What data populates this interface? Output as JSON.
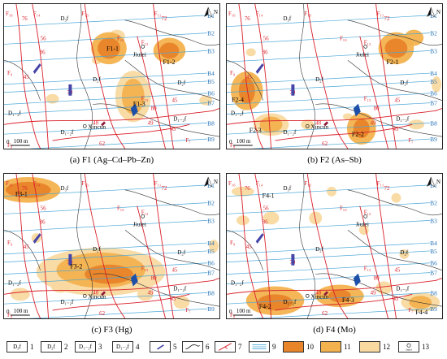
{
  "panels": [
    {
      "id": "a",
      "caption": "(a) F1 (Ag–Cd–Pb–Zn)",
      "labels": [
        "F1-1",
        "F1-2",
        "F1-3"
      ]
    },
    {
      "id": "b",
      "caption": "(b) F2 (As–Sb)",
      "labels": [
        "F2-1",
        "F2-4",
        "F2-3",
        "F2-2"
      ]
    },
    {
      "id": "c",
      "caption": "(c) F3 (Hg)",
      "labels": [
        "F3-1",
        "F3-2"
      ]
    },
    {
      "id": "d",
      "caption": "(d) F4 (Mo)",
      "labels": [
        "F4-1",
        "F4-2",
        "F4-3",
        "F4-4"
      ]
    }
  ],
  "map": {
    "lines": [
      "B1",
      "B2",
      "B3",
      "B4",
      "B5",
      "B6",
      "B7",
      "B8",
      "B9"
    ],
    "places": {
      "jiulei": "Jiulei",
      "xincun": "Xincun"
    },
    "north": "N",
    "scale": "100 m",
    "scale_zero": "0",
    "strata": {
      "d3": "D₃f",
      "d2": "D₂f",
      "d12": "D₁₋₂f",
      "d12b": "D₁₋₂f"
    },
    "faults": [
      "F₁₆",
      "F₁₄",
      "F₁₃",
      "F₁₂",
      "F₁₁",
      "F₁₀",
      "F₁₅",
      "F₉",
      "F₈",
      "F₇"
    ],
    "dips": [
      "76",
      "72",
      "86",
      "45",
      "70",
      "80",
      "49",
      "48",
      "43",
      "62",
      "56",
      "45"
    ]
  },
  "legend": [
    {
      "n": "1",
      "text": "D₃f"
    },
    {
      "n": "2",
      "text": "D₂f"
    },
    {
      "n": "3",
      "text": "D₁₋₂f"
    },
    {
      "n": "4",
      "text": "D₁₋₂f"
    },
    {
      "n": "5",
      "symbol": "dike"
    },
    {
      "n": "6",
      "symbol": "boundary"
    },
    {
      "n": "7",
      "symbol": "fault",
      "text": "F₁₅ 86"
    },
    {
      "n": "9",
      "symbol": "survey-line"
    },
    {
      "n": "10",
      "symbol": "fill",
      "color": "#e8842a"
    },
    {
      "n": "11",
      "symbol": "fill",
      "color": "#f3b24e"
    },
    {
      "n": "12",
      "symbol": "fill",
      "color": "#f9d9a0"
    },
    {
      "n": "13",
      "symbol": "village",
      "text": "Jiulei"
    }
  ],
  "colors": {
    "strong": "#e8842a",
    "medium": "#f3b24e",
    "weak": "#f9d9a0",
    "fault": "#d9202a",
    "line": "#4aa7d8",
    "dike": "#4545a8",
    "ore": "#1c4fa8"
  }
}
